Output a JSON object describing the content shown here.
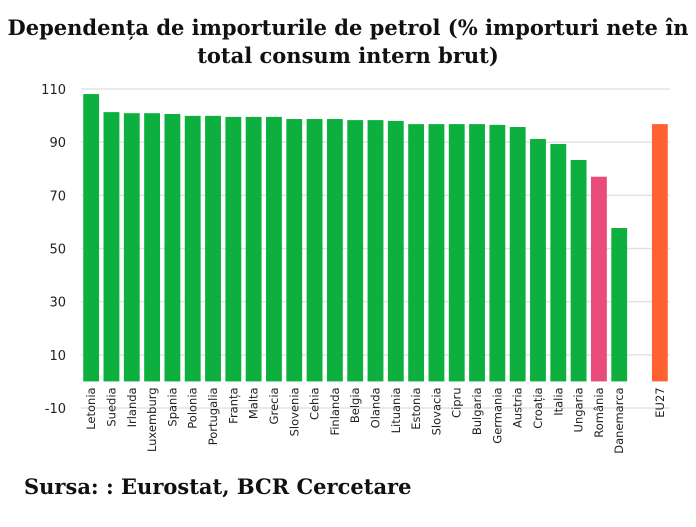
{
  "chart_data": {
    "type": "bar",
    "title": "Dependența de importurile de petrol (% importuri nete în total consum intern brut)",
    "categories": [
      "Letonia",
      "Suedia",
      "Irlanda",
      "Luxemburg",
      "Spania",
      "Polonia",
      "Portugalia",
      "Franța",
      "Malta",
      "Grecia",
      "Slovenia",
      "Cehia",
      "Finlanda",
      "Belgia",
      "Olanda",
      "Lituania",
      "Estonia",
      "Slovacia",
      "Cipru",
      "Bulgaria",
      "Germania",
      "Austria",
      "Croația",
      "Italia",
      "Ungaria",
      "România",
      "Danemarca",
      "",
      "EU27"
    ],
    "values": [
      108.1,
      101.3,
      100.9,
      100.9,
      100.6,
      99.9,
      99.9,
      99.5,
      99.5,
      99.5,
      98.7,
      98.7,
      98.7,
      98.3,
      98.3,
      98.0,
      96.8,
      96.8,
      96.8,
      96.8,
      96.5,
      95.7,
      91.2,
      89.3,
      83.3,
      77.0,
      57.7,
      null,
      96.8
    ],
    "colors": {
      "default": "#0db03e",
      "România": "#e94b7b",
      "EU27": "#ff6231"
    },
    "ylim": [
      -10,
      110
    ],
    "yticks": [
      110,
      90,
      70,
      50,
      30,
      10,
      -10
    ],
    "grid": true,
    "xlabel": "",
    "ylabel": ""
  },
  "source": "Sursa: : Eurostat, BCR Cercetare"
}
